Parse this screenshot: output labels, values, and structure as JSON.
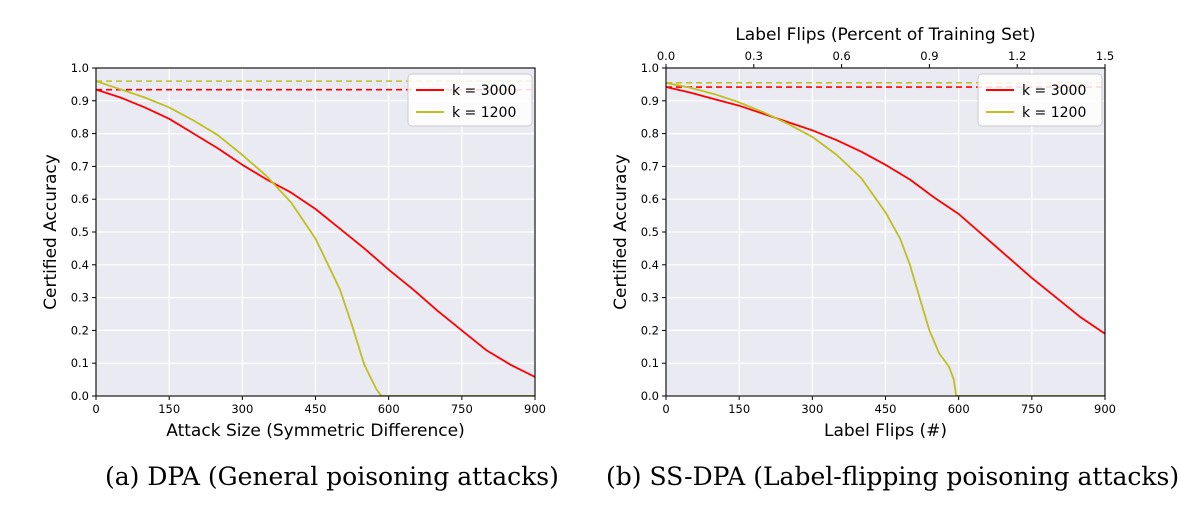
{
  "captions": {
    "a": "(a) DPA (General poisoning attacks)",
    "b": "(b) SS-DPA (Label-flipping poisoning attacks)"
  },
  "colors": {
    "plot_bg": "#eaeaf2",
    "grid": "#ffffff",
    "k3000": "#ff0000",
    "k1200": "#bfbf1f"
  },
  "chart_data": [
    {
      "type": "line",
      "xlabel": "Attack Size (Symmetric Difference)",
      "ylabel": "Certified Accuracy",
      "xlim": [
        0,
        900
      ],
      "ylim": [
        0.0,
        1.0
      ],
      "xticks": [
        "0",
        "150",
        "300",
        "450",
        "600",
        "750",
        "900"
      ],
      "yticks": [
        "0.0",
        "0.1",
        "0.2",
        "0.3",
        "0.4",
        "0.5",
        "0.6",
        "0.7",
        "0.8",
        "0.9",
        "1.0"
      ],
      "grid": true,
      "legend": "top-right",
      "series": [
        {
          "name": "k = 3000",
          "color": "#ff0000",
          "baseline": 0.934,
          "x": [
            0,
            50,
            100,
            150,
            200,
            250,
            300,
            350,
            400,
            450,
            500,
            550,
            600,
            650,
            700,
            750,
            800,
            850,
            900
          ],
          "y": [
            0.934,
            0.91,
            0.88,
            0.845,
            0.8,
            0.755,
            0.705,
            0.66,
            0.62,
            0.57,
            0.51,
            0.45,
            0.385,
            0.325,
            0.26,
            0.2,
            0.14,
            0.095,
            0.058
          ]
        },
        {
          "name": "k = 1200",
          "color": "#bfbf1f",
          "baseline": 0.96,
          "x": [
            0,
            50,
            100,
            150,
            200,
            250,
            300,
            350,
            400,
            450,
            500,
            525,
            550,
            575,
            585,
            600,
            700,
            800,
            900
          ],
          "y": [
            0.96,
            0.935,
            0.91,
            0.88,
            0.84,
            0.795,
            0.735,
            0.67,
            0.59,
            0.48,
            0.325,
            0.215,
            0.095,
            0.02,
            0.0,
            0.0,
            0.0,
            0.0,
            0.0
          ]
        }
      ]
    },
    {
      "type": "line",
      "title": "Label Flips (Percent of Training Set)",
      "xlabel": "Label Flips (#)",
      "ylabel": "Certified Accuracy",
      "xlim": [
        0,
        900
      ],
      "ylim": [
        0.0,
        1.0
      ],
      "xticks": [
        "0",
        "150",
        "300",
        "450",
        "600",
        "750",
        "900"
      ],
      "secondary_xticks": [
        "0.0",
        "0.3",
        "0.6",
        "0.9",
        "1.2",
        "1.5"
      ],
      "yticks": [
        "0.0",
        "0.1",
        "0.2",
        "0.3",
        "0.4",
        "0.5",
        "0.6",
        "0.7",
        "0.8",
        "0.9",
        "1.0"
      ],
      "grid": true,
      "legend": "top-right",
      "series": [
        {
          "name": "k = 3000",
          "color": "#ff0000",
          "baseline": 0.942,
          "x": [
            0,
            50,
            100,
            150,
            200,
            250,
            300,
            350,
            400,
            450,
            500,
            550,
            600,
            650,
            700,
            750,
            800,
            850,
            900
          ],
          "y": [
            0.942,
            0.925,
            0.905,
            0.885,
            0.86,
            0.835,
            0.81,
            0.78,
            0.745,
            0.705,
            0.66,
            0.605,
            0.555,
            0.49,
            0.425,
            0.36,
            0.3,
            0.24,
            0.19
          ]
        },
        {
          "name": "k = 1200",
          "color": "#bfbf1f",
          "baseline": 0.955,
          "x": [
            0,
            50,
            100,
            150,
            200,
            250,
            300,
            350,
            400,
            450,
            480,
            500,
            520,
            540,
            560,
            580,
            590,
            595,
            600,
            700,
            800,
            900
          ],
          "y": [
            0.955,
            0.94,
            0.92,
            0.895,
            0.865,
            0.83,
            0.79,
            0.735,
            0.665,
            0.56,
            0.48,
            0.4,
            0.3,
            0.2,
            0.13,
            0.09,
            0.05,
            0.0,
            0.0,
            0.0,
            0.0,
            0.0
          ]
        }
      ]
    }
  ]
}
